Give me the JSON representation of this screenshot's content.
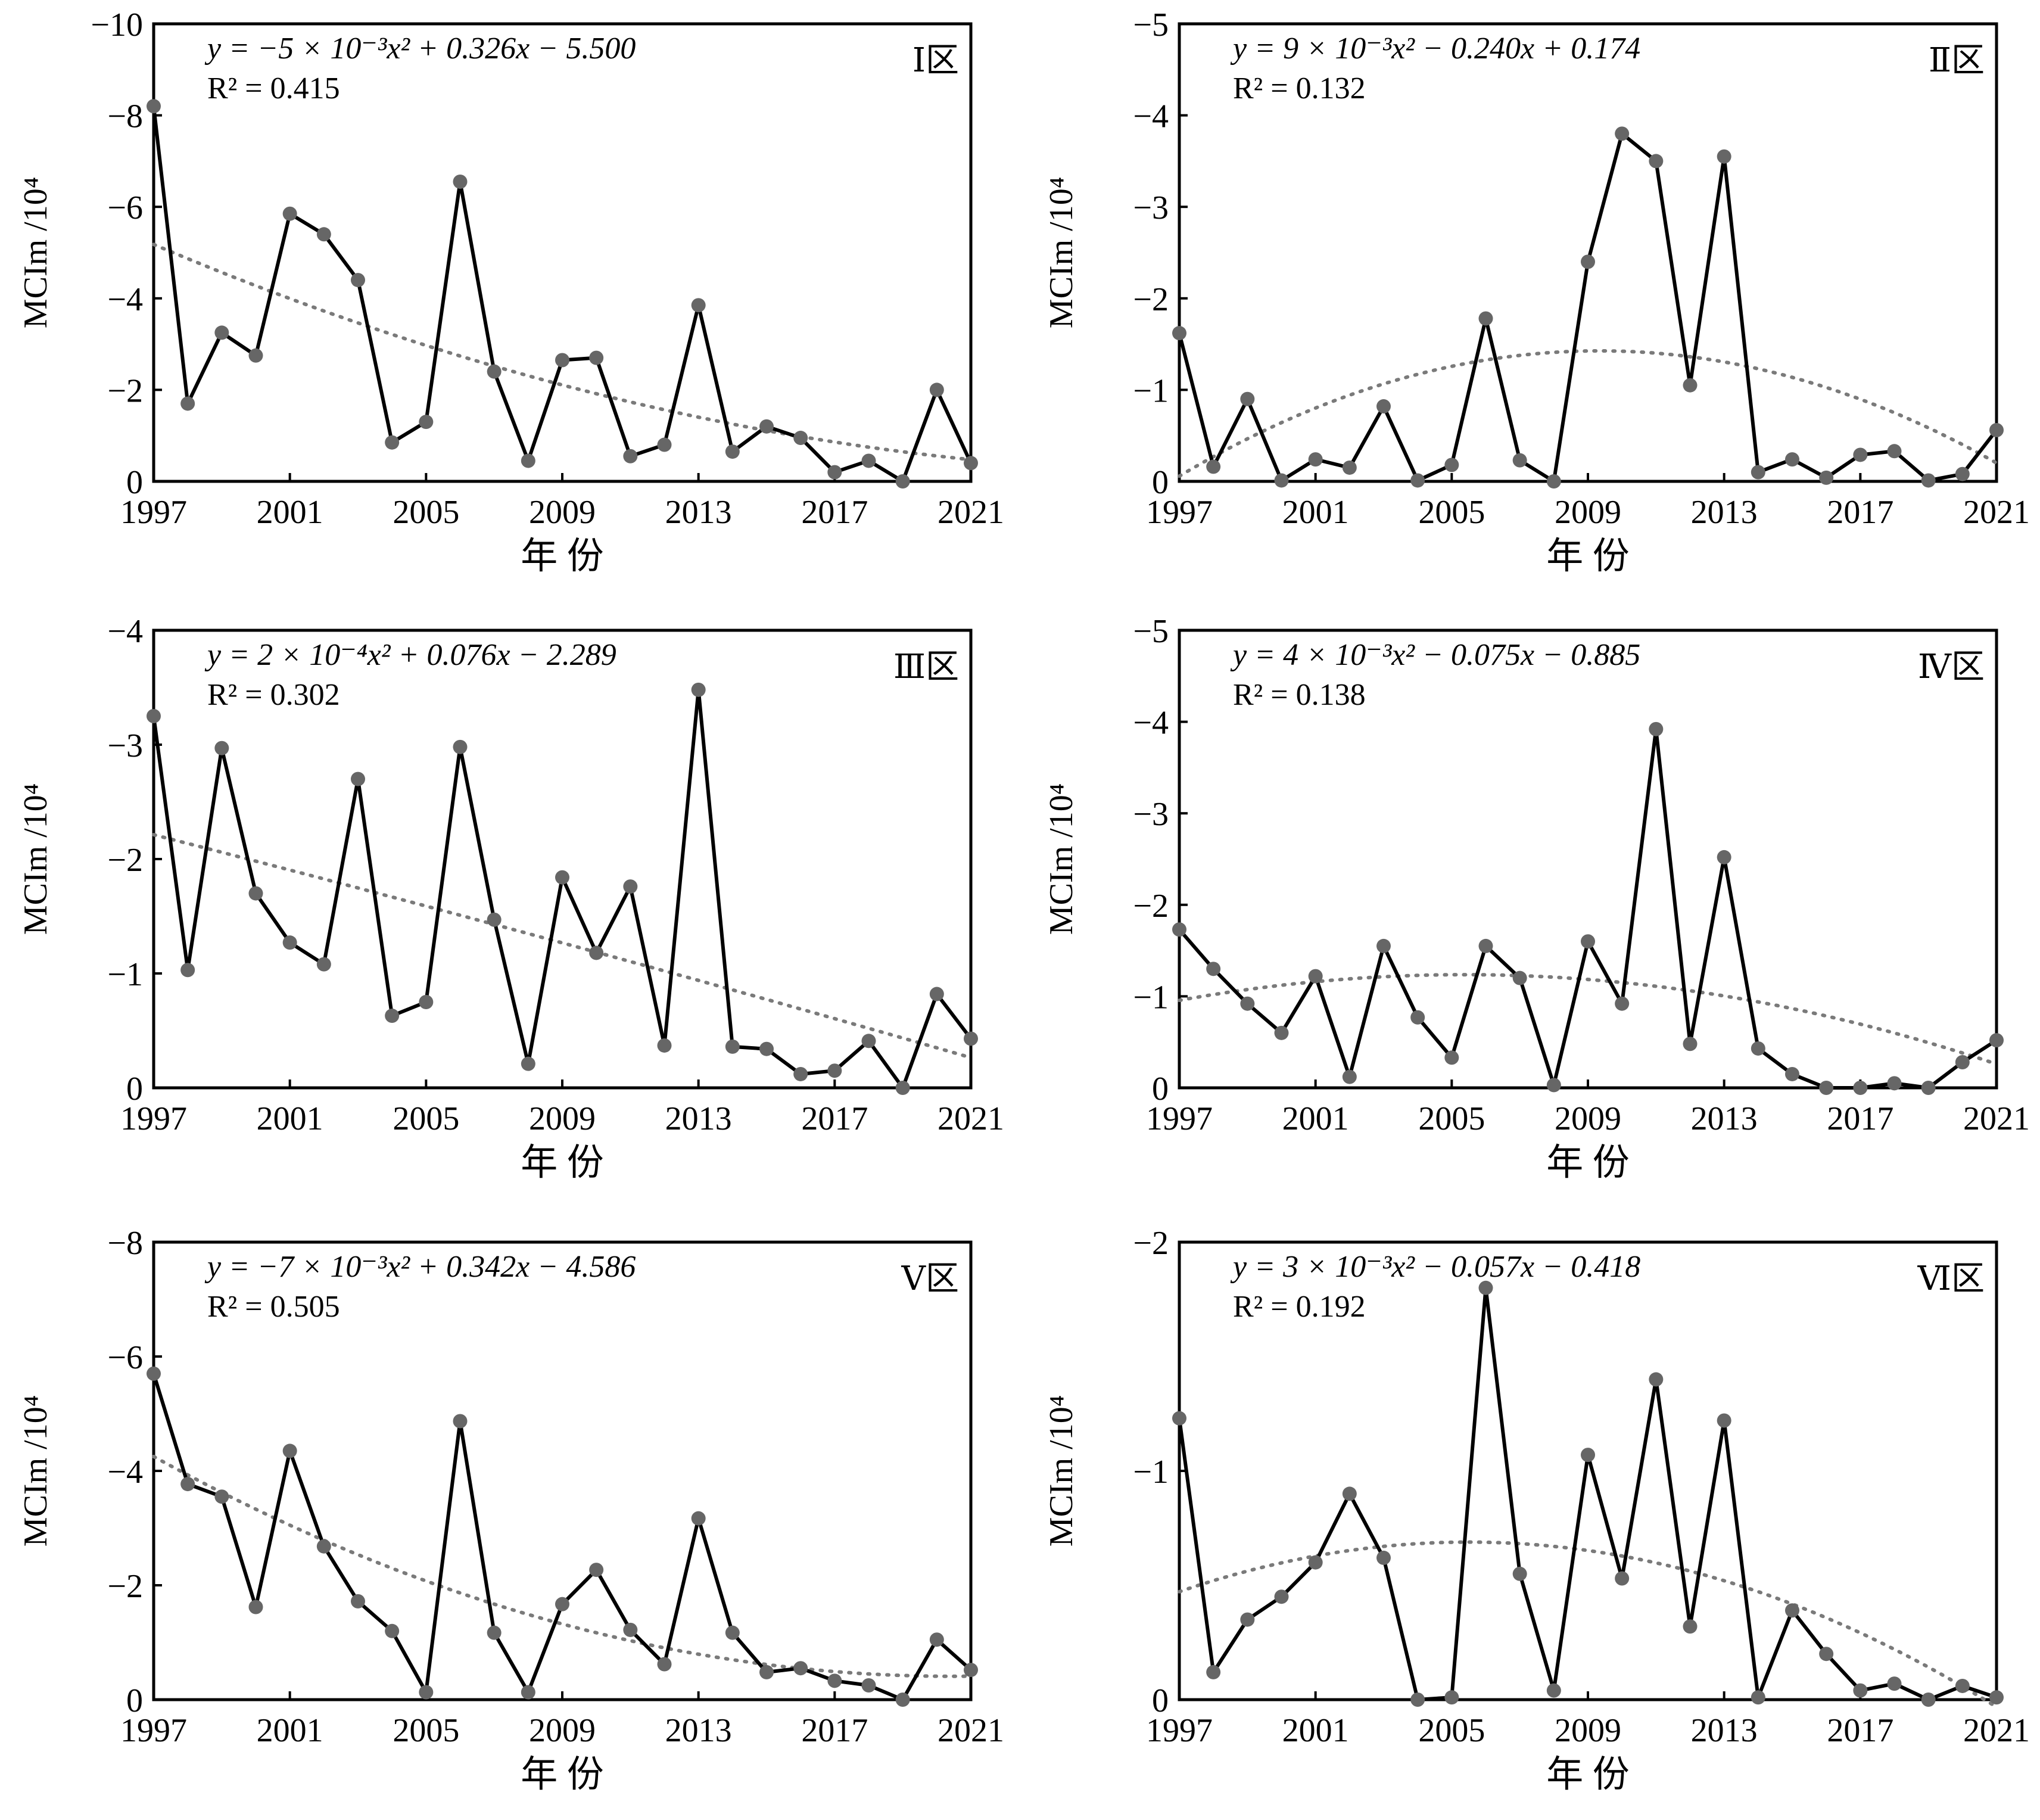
{
  "chart_data": [
    {
      "type": "line",
      "region_label": "Ⅰ区",
      "equation": "y = −5 × 10⁻³x² + 0.326x − 5.500",
      "r2": "R² = 0.415",
      "xlabel": "年 份",
      "ylabel": "MCIm /10⁴",
      "x_ticks": [
        "1997",
        "2001",
        "2005",
        "2009",
        "2013",
        "2017",
        "2021"
      ],
      "y_ticks": [
        "0",
        "−2",
        "−4",
        "−6",
        "−8",
        "−10"
      ],
      "ylim": [
        0,
        -10
      ],
      "x": [
        1997,
        1998,
        1999,
        2000,
        2001,
        2002,
        2003,
        2004,
        2005,
        2006,
        2007,
        2008,
        2009,
        2010,
        2011,
        2012,
        2013,
        2014,
        2015,
        2016,
        2017,
        2018,
        2019,
        2020,
        2021
      ],
      "values": [
        -8.2,
        -1.7,
        -3.25,
        -2.75,
        -5.85,
        -5.4,
        -4.4,
        -0.85,
        -1.3,
        -6.55,
        -2.4,
        -0.45,
        -2.65,
        -2.7,
        -0.55,
        -0.8,
        -3.85,
        -0.65,
        -1.2,
        -0.95,
        -0.2,
        -0.45,
        0,
        -2.0,
        -0.4
      ],
      "trend_coef": [
        -0.005,
        0.326,
        -5.5
      ],
      "colors": {
        "line": "#000000",
        "marker": "#666666",
        "trend": "#7a7a7a"
      }
    },
    {
      "type": "line",
      "region_label": "Ⅱ区",
      "equation": "y = 9 × 10⁻³x² − 0.240x + 0.174",
      "r2": "R² = 0.132",
      "xlabel": "年 份",
      "ylabel": "MCIm /10⁴",
      "x_ticks": [
        "1997",
        "2001",
        "2005",
        "2009",
        "2013",
        "2017",
        "2021"
      ],
      "y_ticks": [
        "0",
        "−1",
        "−2",
        "−3",
        "−4",
        "−5"
      ],
      "ylim": [
        0,
        -5
      ],
      "x": [
        1997,
        1998,
        1999,
        2000,
        2001,
        2002,
        2003,
        2004,
        2005,
        2006,
        2007,
        2008,
        2009,
        2010,
        2011,
        2012,
        2013,
        2014,
        2015,
        2016,
        2017,
        2018,
        2019,
        2020,
        2021
      ],
      "values": [
        -1.62,
        -0.16,
        -0.9,
        -0.01,
        -0.24,
        -0.15,
        -0.82,
        -0.01,
        -0.18,
        -1.78,
        -0.23,
        0,
        -2.4,
        -3.8,
        -3.5,
        -1.05,
        -3.55,
        -0.1,
        -0.24,
        -0.04,
        -0.29,
        -0.33,
        -0.01,
        -0.08,
        -0.56
      ],
      "trend_coef": [
        0.009,
        -0.24,
        0.174
      ],
      "colors": {
        "line": "#000000",
        "marker": "#666666",
        "trend": "#7a7a7a"
      }
    },
    {
      "type": "line",
      "region_label": "Ⅲ区",
      "equation": "y = 2 × 10⁻⁴x² + 0.076x − 2.289",
      "r2": "R² = 0.302",
      "xlabel": "年 份",
      "ylabel": "MCIm /10⁴",
      "x_ticks": [
        "1997",
        "2001",
        "2005",
        "2009",
        "2013",
        "2017",
        "2021"
      ],
      "y_ticks": [
        "0",
        "−1",
        "−2",
        "−3",
        "−4"
      ],
      "ylim": [
        0,
        -4
      ],
      "x": [
        1997,
        1998,
        1999,
        2000,
        2001,
        2002,
        2003,
        2004,
        2005,
        2006,
        2007,
        2008,
        2009,
        2010,
        2011,
        2012,
        2013,
        2014,
        2015,
        2016,
        2017,
        2018,
        2019,
        2020,
        2021
      ],
      "values": [
        -3.25,
        -1.03,
        -2.97,
        -1.7,
        -1.27,
        -1.08,
        -2.7,
        -0.63,
        -0.75,
        -2.98,
        -1.47,
        -0.21,
        -1.84,
        -1.18,
        -1.76,
        -0.37,
        -3.48,
        -0.36,
        -0.34,
        -0.12,
        -0.15,
        -0.41,
        0,
        -0.82,
        -0.43
      ],
      "trend_coef": [
        0.0002,
        0.076,
        -2.289
      ],
      "colors": {
        "line": "#000000",
        "marker": "#666666",
        "trend": "#7a7a7a"
      }
    },
    {
      "type": "line",
      "region_label": "Ⅳ区",
      "equation": "y = 4 × 10⁻³x² − 0.075x − 0.885",
      "r2": "R² = 0.138",
      "xlabel": "年 份",
      "ylabel": "MCIm /10⁴",
      "x_ticks": [
        "1997",
        "2001",
        "2005",
        "2009",
        "2013",
        "2017",
        "2021"
      ],
      "y_ticks": [
        "0",
        "−1",
        "−2",
        "−3",
        "−4",
        "−5"
      ],
      "ylim": [
        0,
        -5
      ],
      "x": [
        1997,
        1998,
        1999,
        2000,
        2001,
        2002,
        2003,
        2004,
        2005,
        2006,
        2007,
        2008,
        2009,
        2010,
        2011,
        2012,
        2013,
        2014,
        2015,
        2016,
        2017,
        2018,
        2019,
        2020,
        2021
      ],
      "values": [
        -1.73,
        -1.3,
        -0.92,
        -0.6,
        -1.22,
        -0.12,
        -1.55,
        -0.77,
        -0.33,
        -1.55,
        -1.2,
        -0.03,
        -1.6,
        -0.92,
        -3.92,
        -0.48,
        -2.52,
        -0.43,
        -0.15,
        0,
        0,
        -0.05,
        0,
        -0.28,
        -0.52
      ],
      "trend_coef": [
        0.004,
        -0.075,
        -0.885
      ],
      "colors": {
        "line": "#000000",
        "marker": "#666666",
        "trend": "#7a7a7a"
      }
    },
    {
      "type": "line",
      "region_label": "Ⅴ区",
      "equation": "y = −7 × 10⁻³x² + 0.342x − 4.586",
      "r2": "R² = 0.505",
      "xlabel": "年 份",
      "ylabel": "MCIm /10⁴",
      "x_ticks": [
        "1997",
        "2001",
        "2005",
        "2009",
        "2013",
        "2017",
        "2021"
      ],
      "y_ticks": [
        "0",
        "−2",
        "−4",
        "−6",
        "−8"
      ],
      "ylim": [
        0,
        -8
      ],
      "x": [
        1997,
        1998,
        1999,
        2000,
        2001,
        2002,
        2003,
        2004,
        2005,
        2006,
        2007,
        2008,
        2009,
        2010,
        2011,
        2012,
        2013,
        2014,
        2015,
        2016,
        2017,
        2018,
        2019,
        2020,
        2021
      ],
      "values": [
        -5.7,
        -3.77,
        -3.55,
        -1.62,
        -4.35,
        -2.68,
        -1.72,
        -1.2,
        -0.13,
        -4.87,
        -1.17,
        -0.13,
        -1.67,
        -2.27,
        -1.22,
        -0.62,
        -3.17,
        -1.17,
        -0.48,
        -0.55,
        -0.33,
        -0.25,
        0,
        -1.05,
        -0.52
      ],
      "trend_coef": [
        -0.007,
        0.342,
        -4.586
      ],
      "colors": {
        "line": "#000000",
        "marker": "#666666",
        "trend": "#7a7a7a"
      }
    },
    {
      "type": "line",
      "region_label": "Ⅵ区",
      "equation": "y = 3 × 10⁻³x² − 0.057x − 0.418",
      "r2": "R² = 0.192",
      "xlabel": "年 份",
      "ylabel": "MCIm /10⁴",
      "x_ticks": [
        "1997",
        "2001",
        "2005",
        "2009",
        "2013",
        "2017",
        "2021"
      ],
      "y_ticks": [
        "0",
        "−1",
        "−2"
      ],
      "ylim": [
        0,
        -2
      ],
      "x": [
        1997,
        1998,
        1999,
        2000,
        2001,
        2002,
        2003,
        2004,
        2005,
        2006,
        2007,
        2008,
        2009,
        2010,
        2011,
        2012,
        2013,
        2014,
        2015,
        2016,
        2017,
        2018,
        2019,
        2020,
        2021
      ],
      "values": [
        -1.23,
        -0.12,
        -0.35,
        -0.45,
        -0.6,
        -0.9,
        -0.62,
        0,
        -0.01,
        -1.8,
        -0.55,
        -0.04,
        -1.07,
        -0.53,
        -1.4,
        -0.32,
        -1.22,
        -0.01,
        -0.39,
        -0.2,
        -0.04,
        -0.07,
        0,
        -0.06,
        -0.01
      ],
      "trend_coef": [
        0.003,
        -0.057,
        -0.418
      ],
      "colors": {
        "line": "#000000",
        "marker": "#666666",
        "trend": "#7a7a7a"
      }
    }
  ]
}
